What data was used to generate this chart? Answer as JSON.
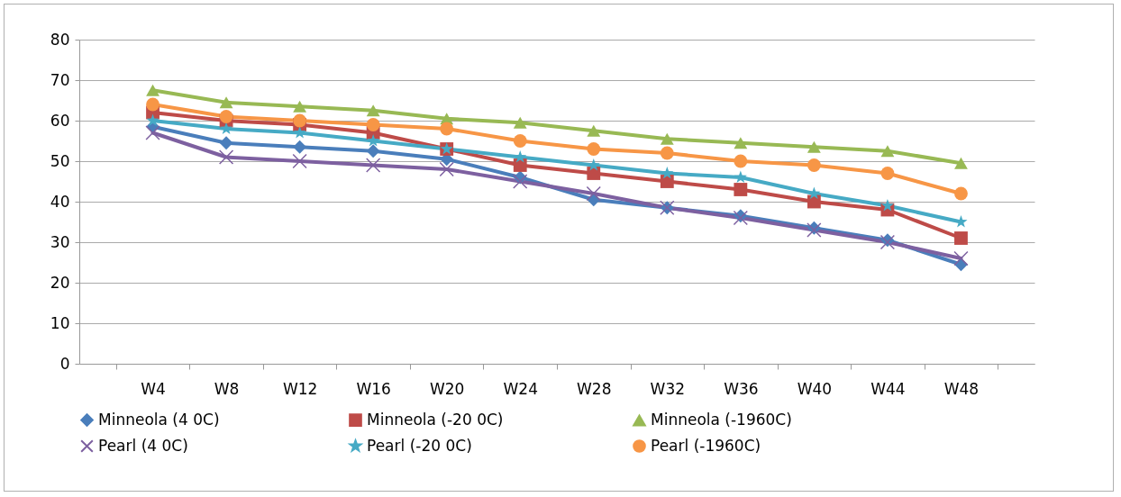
{
  "chart_data": {
    "type": "line",
    "categories": [
      "W4",
      "W8",
      "W12",
      "W16",
      "W20",
      "W24",
      "W28",
      "W32",
      "W36",
      "W40",
      "W44",
      "W48"
    ],
    "ylim": [
      0,
      80
    ],
    "yticks": [
      0,
      10,
      20,
      30,
      40,
      50,
      60,
      70,
      80
    ],
    "grid": "y",
    "legend": "bottom",
    "series": [
      {
        "name": "Minneola (4 0C)",
        "color": "#4a7ebb",
        "marker": "diamond",
        "values": [
          58.5,
          54.5,
          53.5,
          52.5,
          50.5,
          46,
          40.5,
          38.5,
          36.5,
          33.5,
          30.5,
          24.5
        ]
      },
      {
        "name": "Minneola (-20 0C)",
        "color": "#be4b48",
        "marker": "square",
        "values": [
          62,
          60,
          59,
          57,
          53,
          49,
          47,
          45,
          43,
          40,
          38,
          31
        ]
      },
      {
        "name": "Minneola (-1960C)",
        "color": "#98b954",
        "marker": "triangle",
        "values": [
          67.5,
          64.5,
          63.5,
          62.5,
          60.5,
          59.5,
          57.5,
          55.5,
          54.5,
          53.5,
          52.5,
          49.5
        ]
      },
      {
        "name": "Pearl (4 0C)",
        "color": "#7d60a0",
        "marker": "cross",
        "values": [
          57,
          51,
          50,
          49,
          48,
          45,
          42,
          38.5,
          36,
          33,
          30,
          26
        ]
      },
      {
        "name": "Pearl (-20 0C)",
        "color": "#46aac5",
        "marker": "star",
        "values": [
          60,
          58,
          57,
          55,
          53,
          51,
          49,
          47,
          46,
          42,
          39,
          35
        ]
      },
      {
        "name": "Pearl (-1960C)",
        "color": "#f79646",
        "marker": "circle",
        "values": [
          64,
          61,
          60,
          59,
          58,
          55,
          53,
          52,
          50,
          49,
          47,
          42
        ]
      }
    ]
  }
}
